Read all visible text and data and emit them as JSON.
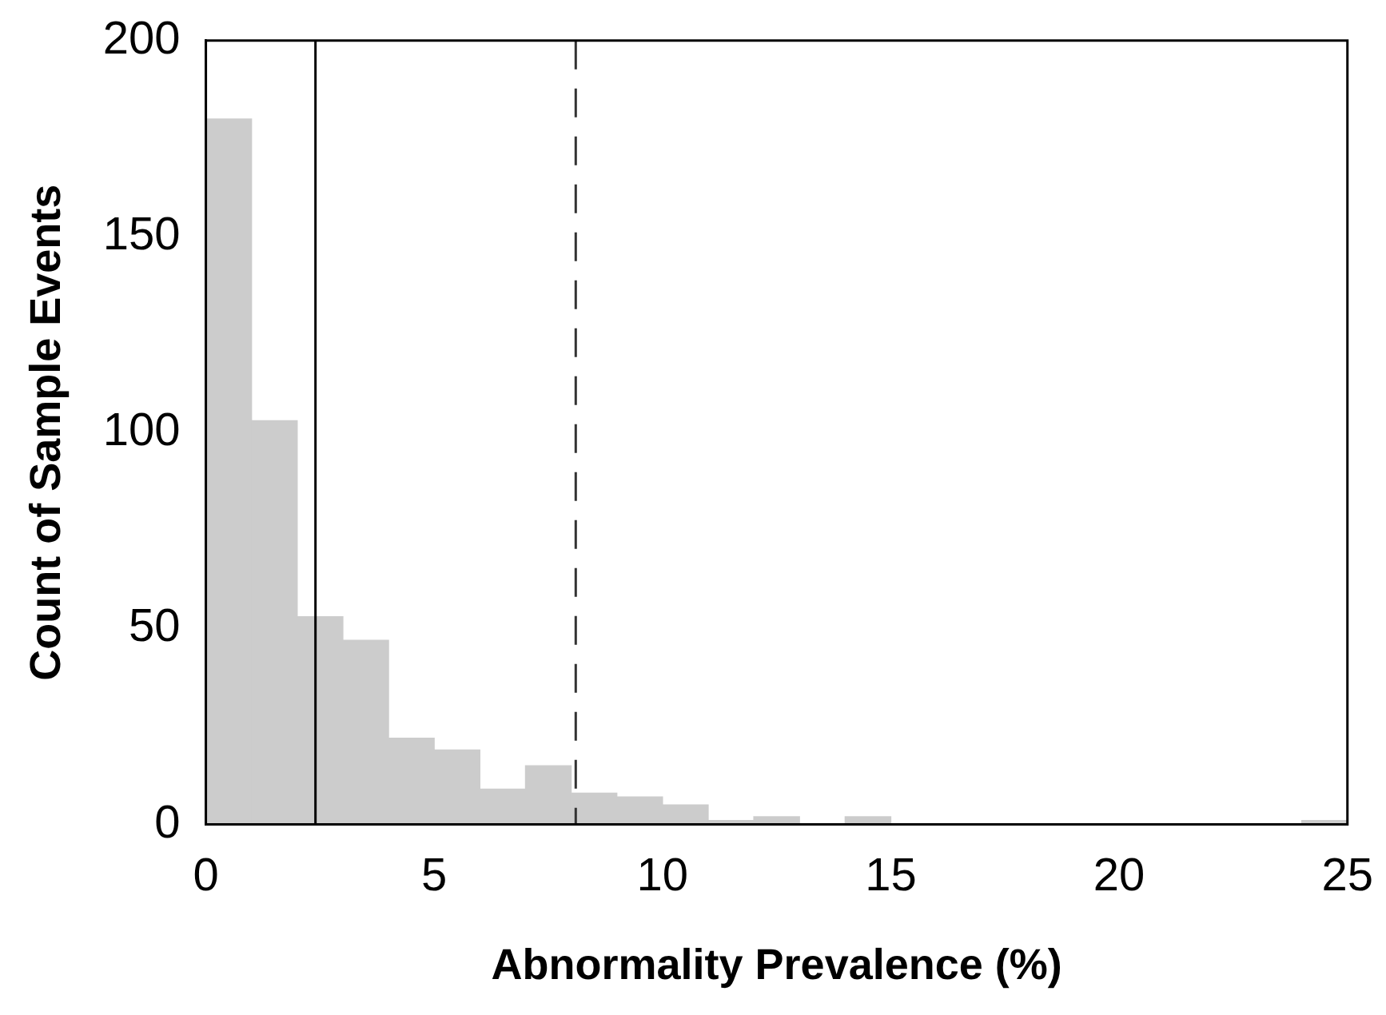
{
  "chart_data": {
    "type": "histogram",
    "xlabel": "Abnormality Prevalence (%)",
    "ylabel": "Count of Sample Events",
    "bins": [
      0,
      1,
      2,
      3,
      4,
      5,
      6,
      7,
      8,
      9,
      10,
      11,
      12,
      13,
      14,
      15,
      16,
      17,
      18,
      19,
      20,
      21,
      22,
      23,
      24,
      25
    ],
    "values": [
      180,
      103,
      53,
      47,
      22,
      19,
      9,
      15,
      8,
      7,
      5,
      1,
      2,
      0,
      2,
      0,
      0,
      0,
      0,
      0,
      0,
      0,
      0,
      0,
      1
    ],
    "color": "#cccccc",
    "xlim": [
      0,
      25
    ],
    "xticks": [
      0,
      5,
      10,
      15,
      20,
      25
    ],
    "ylim": [
      0,
      200
    ],
    "yticks": [
      0,
      50,
      100,
      150,
      200
    ],
    "grid": false,
    "legend": false,
    "ref_lines": [
      {
        "axis": "x",
        "value": 2.4,
        "color": "#000000",
        "line_style": "solid"
      },
      {
        "axis": "x",
        "value": 8.1,
        "color": "#333333",
        "line_style": "dashed"
      }
    ]
  }
}
